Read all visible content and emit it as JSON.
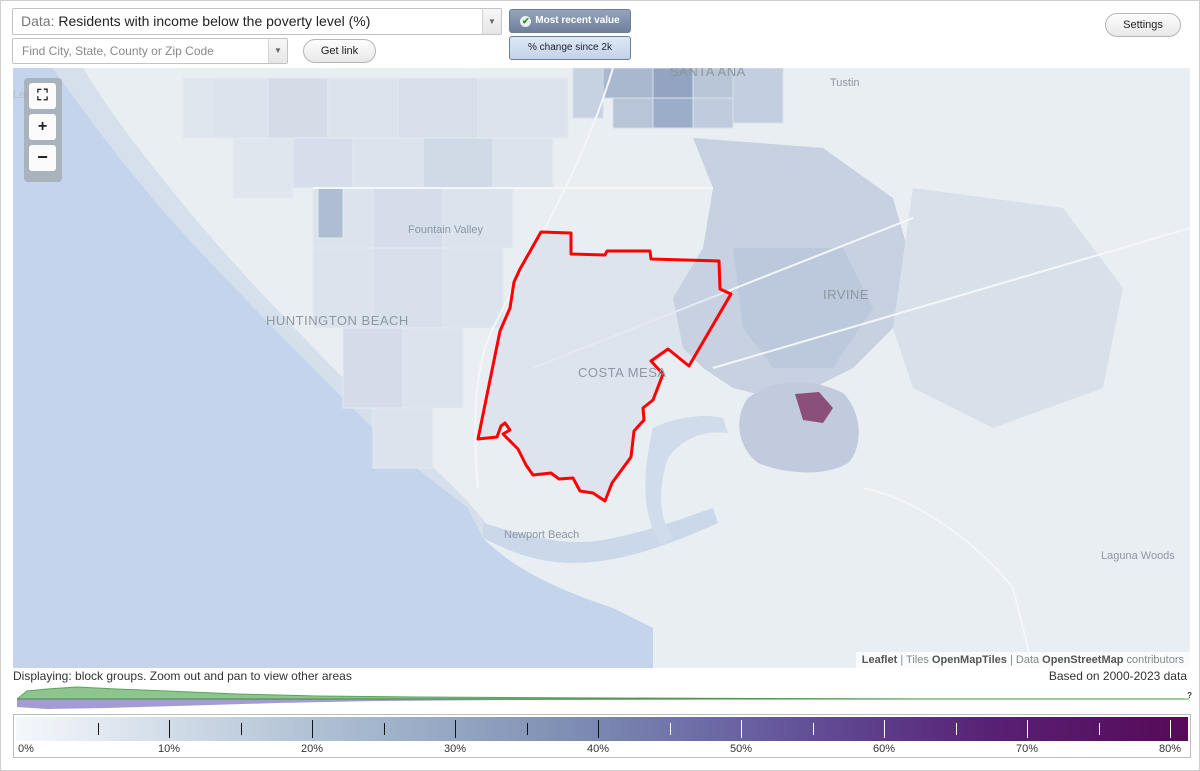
{
  "toolbar": {
    "data_prefix": "Data:",
    "data_value": "Residents with income below the poverty level (%)",
    "search_placeholder": "Find City, State, County or Zip Code",
    "get_link_label": "Get link",
    "most_recent_label": "Most recent value",
    "change_label": "% change since 2k",
    "settings_label": "Settings",
    "dropdown_arrow": "▼"
  },
  "map": {
    "places": {
      "santa_ana": "SANTA ANA",
      "tustin": "Tustin",
      "fountain_valley": "Fountain Valley",
      "irvine": "IRVINE",
      "huntington_beach": "HUNTINGTON BEACH",
      "costa_mesa": "COSTA MESA",
      "newport_beach": "Newport Beach",
      "laguna_woods": "Laguna Woods"
    },
    "zoom_full_glyph": "⛶",
    "zoom_in_glyph": "+",
    "zoom_out_glyph": "−",
    "ghost_label": "Leaflet",
    "attribution": {
      "leaflet": "Leaflet",
      "sep1": " | Tiles ",
      "tiles": "OpenMapTiles",
      "sep2": " | Data ",
      "data": "OpenStreetMap",
      "tail": " contributors"
    },
    "colors": {
      "boundary": "#ff0000",
      "water": "#c3d4ec",
      "land": "#e9eef3",
      "hotspot": "#8a4f7a"
    }
  },
  "footer": {
    "display_note": "Displaying: block groups. Zoom out and pan to view other areas",
    "based_on": "Based on 2000-2023 data",
    "question": "?"
  },
  "legend": {
    "labels": [
      "0%",
      "10%",
      "20%",
      "30%",
      "40%",
      "50%",
      "60%",
      "70%",
      "80%"
    ],
    "max_value": 82
  }
}
